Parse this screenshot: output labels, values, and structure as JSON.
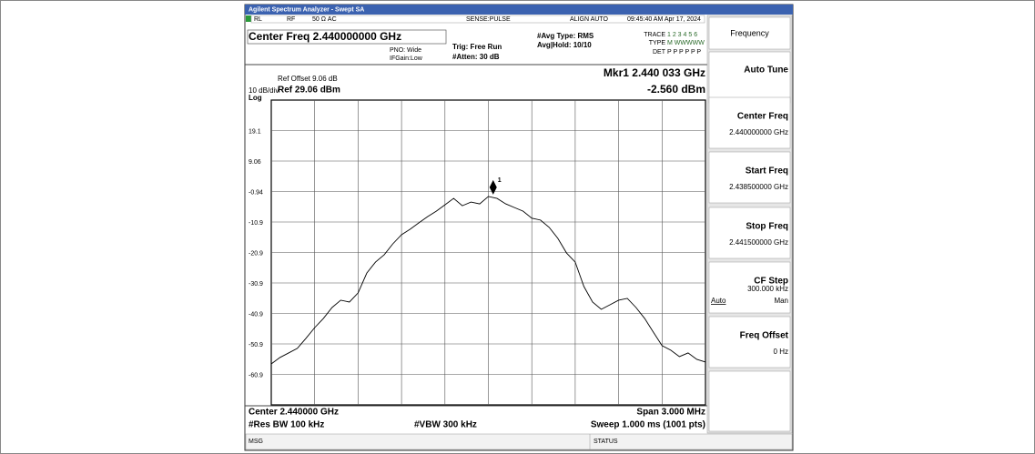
{
  "title_bar": "Agilent Spectrum Analyzer - Swept SA",
  "status_bar": {
    "rl": "RL",
    "rf": "RF",
    "coupling": "50 Ω  AC",
    "sense": "SENSE:PULSE",
    "align": "ALIGN AUTO",
    "datetime": "09:45:40 AM Apr 17, 2024"
  },
  "settings": {
    "center_freq": "Center Freq 2.440000000 GHz",
    "pno": "PNO: Wide",
    "ifgain": "IFGain:Low",
    "trig": "Trig: Free Run",
    "atten": "#Atten: 30 dB",
    "avg_type": "#Avg Type: RMS",
    "avg_hold": "Avg|Hold: 10/10",
    "trace_label": "TRACE",
    "trace_nums": "1 2 3 4 5 6",
    "type_label": "TYPE",
    "type_values": "M WWWWW",
    "det_label": "DET",
    "det_values": "P P P P P P"
  },
  "display": {
    "ref_offset": "Ref Offset 9.06 dB",
    "scale": "10 dB/div",
    "ref_level": "Ref 29.06 dBm",
    "scale_type": "Log",
    "marker_freq": "Mkr1 2.440 033 GHz",
    "marker_amp": "-2.560 dBm",
    "center": "Center 2.440000 GHz",
    "span": "Span 3.000 MHz",
    "res_bw": "#Res BW 100 kHz",
    "vbw": "#VBW 300 kHz",
    "sweep": "Sweep  1.000 ms (1001 pts)"
  },
  "chart_data": {
    "type": "line",
    "color": "#000000",
    "x": [
      2.4385,
      2.43856,
      2.43862,
      2.43868,
      2.43874,
      2.4388,
      2.43886,
      2.43892,
      2.43898,
      2.43904,
      2.4391,
      2.43916,
      2.43922,
      2.43928,
      2.43934,
      2.4394,
      2.43946,
      2.43952,
      2.43958,
      2.43964,
      2.4397,
      2.43976,
      2.43982,
      2.43988,
      2.43994,
      2.44,
      2.44006,
      2.44012,
      2.44018,
      2.44024,
      2.4403,
      2.44036,
      2.44042,
      2.44048,
      2.44054,
      2.4406,
      2.44066,
      2.44072,
      2.44078,
      2.44084,
      2.4409,
      2.44096,
      2.44102,
      2.44108,
      2.44114,
      2.4412,
      2.44126,
      2.44132,
      2.44138,
      2.44144,
      2.4415
    ],
    "values": [
      -57.5,
      -55.4,
      -53.9,
      -52.4,
      -49.1,
      -45.6,
      -42.6,
      -39.0,
      -36.6,
      -37.2,
      -34.2,
      -27.7,
      -24.1,
      -21.7,
      -18.1,
      -15.1,
      -13.3,
      -11.2,
      -9.2,
      -7.4,
      -5.3,
      -3.2,
      -5.6,
      -4.4,
      -5.0,
      -2.56,
      -3.2,
      -5.0,
      -6.2,
      -7.4,
      -9.7,
      -10.3,
      -12.7,
      -16.3,
      -21.1,
      -24.1,
      -32.1,
      -37.2,
      -39.6,
      -38.1,
      -36.6,
      -36.0,
      -39.0,
      -42.6,
      -47.1,
      -51.5,
      -53.0,
      -55.1,
      -53.9,
      -56.0,
      -56.9
    ],
    "xlim": [
      2.4385,
      2.4415
    ],
    "ylim": [
      -70.94,
      29.06
    ],
    "yticks": [
      {
        "value": 19.06,
        "label": "19.1"
      },
      9.06,
      -0.94,
      {
        "value": -10.94,
        "label": "-10.9"
      },
      {
        "value": -20.94,
        "label": "-20.9"
      },
      {
        "value": -30.94,
        "label": "-30.9"
      },
      {
        "value": -40.94,
        "label": "-40.9"
      },
      {
        "value": -50.94,
        "label": "-50.9"
      },
      {
        "value": -60.94,
        "label": "-60.9"
      }
    ],
    "grid": true,
    "marker": {
      "label": "1",
      "x": 2.440033,
      "value": -2.56
    }
  },
  "softkeys": {
    "menu": "Frequency",
    "keys": [
      {
        "label": "Auto Tune"
      },
      {
        "label": "Center Freq",
        "value": "2.440000000 GHz"
      },
      {
        "label": "Start Freq",
        "value": "2.438500000 GHz"
      },
      {
        "label": "Stop Freq",
        "value": "2.441500000 GHz"
      },
      {
        "label": "CF Step",
        "value": "300.000 kHz",
        "auto": "Auto",
        "man": "Man"
      },
      {
        "label": "Freq Offset",
        "value": "0 Hz"
      }
    ]
  },
  "footer": {
    "msg": "MSG",
    "status": "STATUS"
  }
}
